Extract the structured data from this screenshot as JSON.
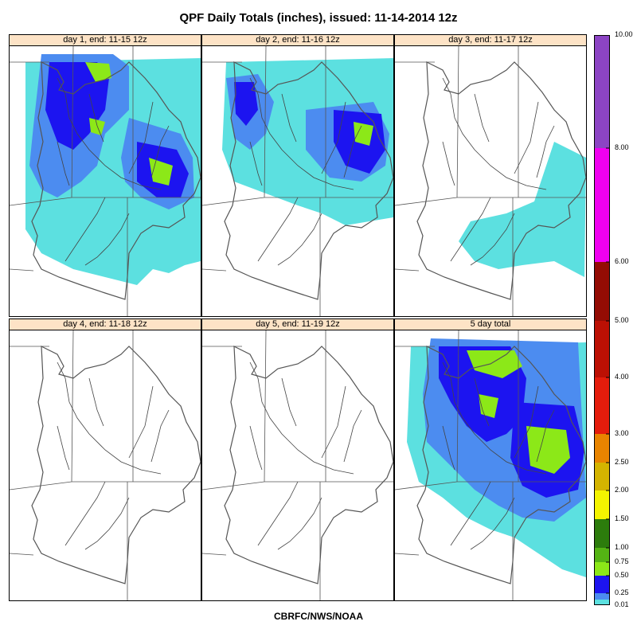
{
  "title": "QPF Daily Totals (inches),  issued: 11-14-2014 12z",
  "footer": "CBRFC/NWS/NOAA",
  "panels": [
    {
      "label": "day 1, end: 11-15 12z"
    },
    {
      "label": "day 2, end: 11-16 12z"
    },
    {
      "label": "day 3, end: 11-17 12z"
    },
    {
      "label": "day 4, end: 11-18 12z"
    },
    {
      "label": "day 5, end: 11-19 12z"
    },
    {
      "label": "5 day total"
    }
  ],
  "colorbar": {
    "levels": [
      "0.01",
      "0.25",
      "0.50",
      "0.75",
      "1.00",
      "1.50",
      "2.00",
      "2.50",
      "3.00",
      "4.00",
      "5.00",
      "6.00",
      "8.00",
      "10.00"
    ],
    "colors": [
      "#5ce0e0",
      "#4c8cf0",
      "#1c14f0",
      "#8ce818",
      "#54b414",
      "#2c7c0c",
      "#f4f400",
      "#d4b400",
      "#e88400",
      "#e41c0c",
      "#bc1004",
      "#940c04",
      "#6c0804",
      "#f000f0",
      "#8c44c4"
    ]
  },
  "legend_colors": {
    "light": "#5ce0e0",
    "medium": "#4c8cf0",
    "heavy": "#1c14f0",
    "very_heavy": "#8ce818"
  }
}
